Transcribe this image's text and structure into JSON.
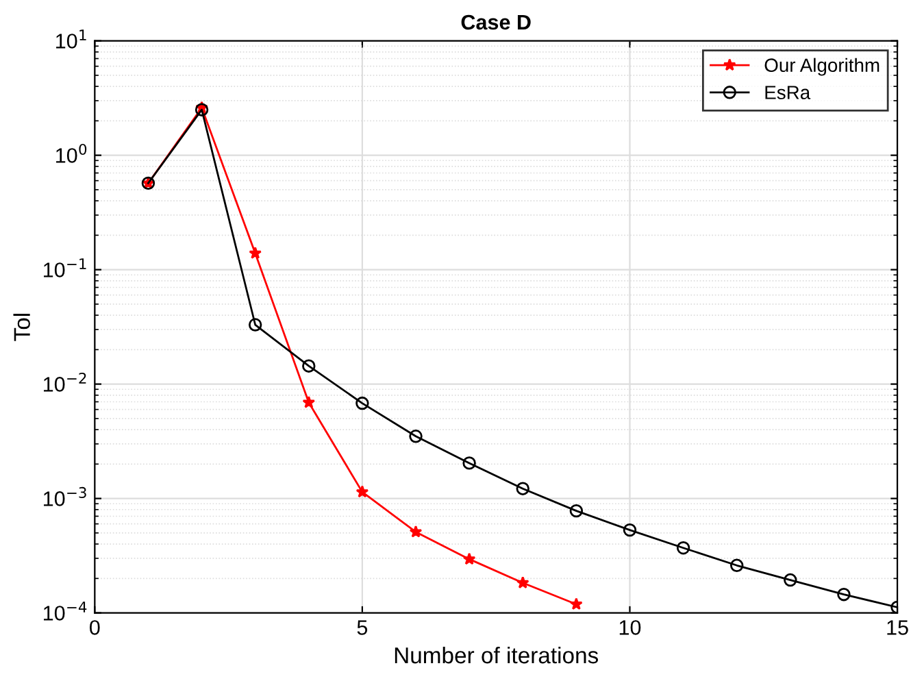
{
  "chart_data": {
    "type": "line",
    "title": "Case D",
    "xlabel": "Number of iterations",
    "ylabel": "Tol",
    "x": [
      1,
      2,
      3,
      4,
      5,
      6,
      7,
      8,
      9,
      10,
      11,
      12,
      13,
      14,
      15
    ],
    "series": [
      {
        "name": "Our Algorithm",
        "color": "#ff0000",
        "marker": "star",
        "values": [
          0.57,
          2.6,
          0.139,
          0.0069,
          0.00114,
          0.00051,
          0.000295,
          0.000183,
          0.000119,
          null,
          null,
          null,
          null,
          null,
          null
        ]
      },
      {
        "name": "EsRa",
        "color": "#000000",
        "marker": "circle",
        "values": [
          0.57,
          2.5,
          0.033,
          0.0144,
          0.0068,
          0.0035,
          0.00204,
          0.00122,
          0.00078,
          0.00053,
          0.00037,
          0.00026,
          0.000194,
          0.000145,
          0.000112
        ]
      }
    ],
    "log": "y",
    "xlim": [
      0,
      15
    ],
    "xticks": [
      0,
      5,
      10,
      15
    ],
    "ylim": [
      0.0001,
      10
    ],
    "yticks": [
      {
        "value": 0.0001,
        "label": "10$^{−4}$"
      },
      {
        "value": 0.001,
        "label": "10$^{−3}$"
      },
      {
        "value": 0.01,
        "label": "10$^{−2}$"
      },
      {
        "value": 0.1,
        "label": "10$^{−1}$"
      },
      {
        "value": 1,
        "label": "10$^{0}$"
      },
      {
        "value": 10,
        "label": "10$^{1}$"
      }
    ],
    "grid": true,
    "legend": "top right",
    "line_style": "solid"
  }
}
